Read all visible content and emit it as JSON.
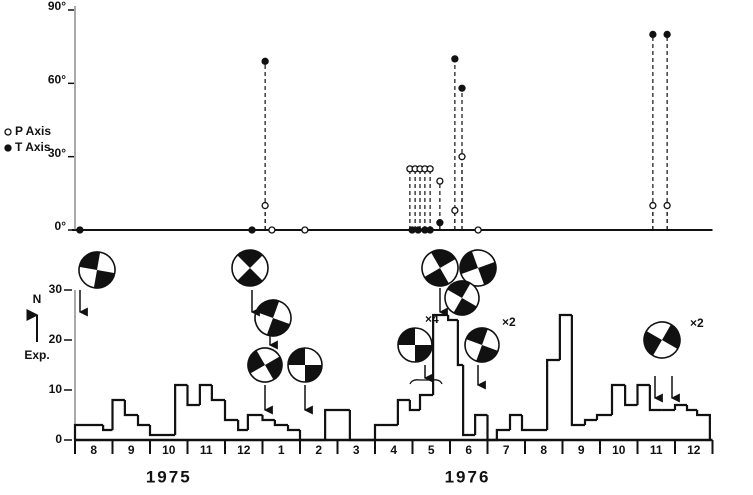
{
  "chart_data": [
    {
      "type": "scatter",
      "xlim": [
        0,
        17
      ],
      "ylim": [
        0,
        90
      ],
      "yticks": [
        {
          "value": 0,
          "label": "0°"
        },
        {
          "value": 30,
          "label": "30°"
        },
        {
          "value": 60,
          "label": "60°"
        },
        {
          "value": 90,
          "label": "90°"
        }
      ],
      "legend": "left",
      "series": [
        {
          "name": "P Axis",
          "color": "#111111",
          "marker": "open",
          "x": [
            5.07,
            5.25,
            6.13,
            8.93,
            9.07,
            9.2,
            9.33,
            9.47,
            9.73,
            10.13,
            10.32,
            10.75,
            15.41,
            15.79
          ],
          "values": [
            10,
            0,
            0,
            25,
            25,
            25,
            25,
            25,
            20,
            8,
            30,
            0,
            10,
            10
          ]
        },
        {
          "name": "T Axis",
          "color": "#111111",
          "marker": "filled",
          "x": [
            0.13,
            4.72,
            5.07,
            8.99,
            9.15,
            9.33,
            9.47,
            9.73,
            10.13,
            10.32,
            15.41,
            15.79
          ],
          "values": [
            0,
            0,
            69,
            0,
            0,
            0,
            0,
            3,
            70,
            58,
            80,
            80
          ]
        }
      ]
    },
    {
      "type": "histogram",
      "ylabel": [
        "N",
        "Exp."
      ],
      "xlim": [
        0,
        17
      ],
      "ylim": [
        0,
        30
      ],
      "yticks": [
        0,
        10,
        20,
        30
      ],
      "color": "#111111",
      "xticks": [
        {
          "value": 0.5,
          "label": "8"
        },
        {
          "value": 1.5,
          "label": "9"
        },
        {
          "value": 2.5,
          "label": "10"
        },
        {
          "value": 3.5,
          "label": "11"
        },
        {
          "value": 4.5,
          "label": "12"
        },
        {
          "value": 5.5,
          "label": "1"
        },
        {
          "value": 6.5,
          "label": "2"
        },
        {
          "value": 7.5,
          "label": "3"
        },
        {
          "value": 8.5,
          "label": "4"
        },
        {
          "value": 9.5,
          "label": "5"
        },
        {
          "value": 10.5,
          "label": "6"
        },
        {
          "value": 11.5,
          "label": "7"
        },
        {
          "value": 12.5,
          "label": "8"
        },
        {
          "value": 13.5,
          "label": "9"
        },
        {
          "value": 14.5,
          "label": "10"
        },
        {
          "value": 15.5,
          "label": "11"
        },
        {
          "value": 16.5,
          "label": "12"
        }
      ],
      "years": [
        "1975",
        "1976"
      ],
      "annotations": [
        "×4",
        "×2",
        "×2"
      ],
      "bins": [
        0,
        0.75,
        1.0,
        1.33,
        1.68,
        2.0,
        2.67,
        3.0,
        3.33,
        3.65,
        4.0,
        4.35,
        4.61,
        5.0,
        5.33,
        5.68,
        6.0,
        6.67,
        7.33,
        8.0,
        8.61,
        8.93,
        9.2,
        9.55,
        9.95,
        10.21,
        10.35,
        10.67,
        11.0,
        11.25,
        11.6,
        11.92,
        12.59,
        12.93,
        13.25,
        13.6,
        13.92,
        14.32,
        14.67,
        15.0,
        15.33,
        15.65,
        16.0,
        16.32,
        16.59,
        16.93
      ],
      "values": [
        3,
        2,
        8,
        5,
        3,
        1,
        11,
        7,
        11,
        8,
        4,
        2,
        5,
        4,
        3,
        2,
        0,
        6,
        0,
        3,
        8,
        6,
        9,
        25,
        24,
        15,
        1,
        5,
        0,
        2,
        5,
        2,
        16,
        25,
        3,
        4,
        5,
        11,
        7,
        11,
        6,
        6,
        7,
        6,
        5
      ]
    }
  ]
}
